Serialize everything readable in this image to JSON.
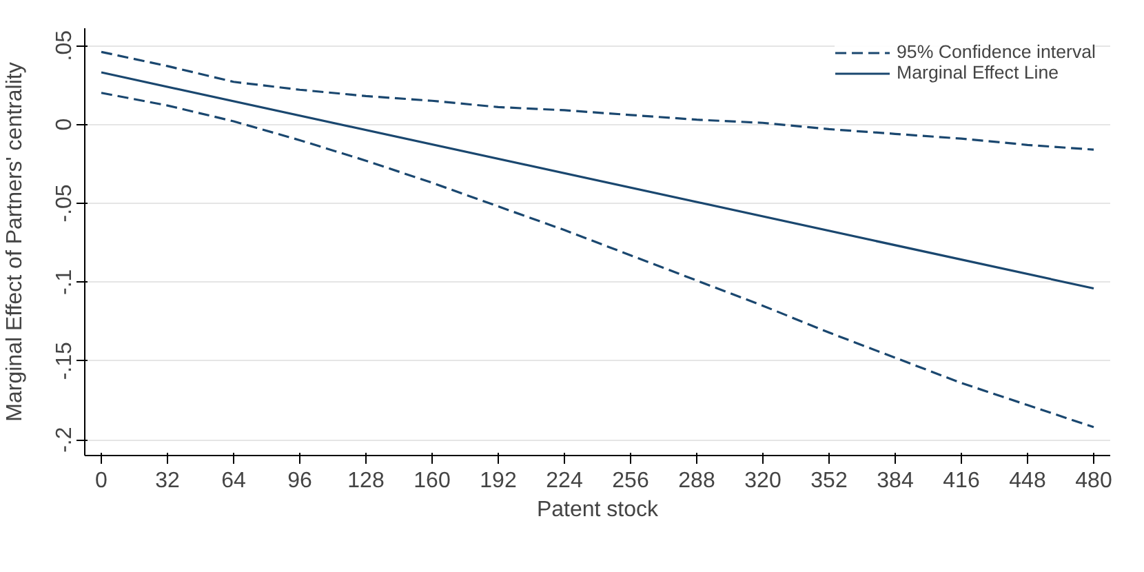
{
  "chart_data": {
    "type": "line",
    "xlabel": "Patent stock",
    "ylabel": "Marginal Effect of Partners' centrality",
    "x": [
      0,
      32,
      64,
      96,
      128,
      160,
      192,
      224,
      256,
      288,
      320,
      352,
      384,
      416,
      448,
      480
    ],
    "series": [
      {
        "name": "95% Confidence interval",
        "color": "#1a476f",
        "line_style": "dashed",
        "values": [
          0.046,
          0.037,
          0.027,
          0.022,
          0.018,
          0.015,
          0.011,
          0.009,
          0.006,
          0.003,
          0.001,
          -0.003,
          -0.006,
          -0.009,
          -0.013,
          -0.016
        ]
      },
      {
        "color": "#1a476f",
        "line_style": "dashed",
        "values": [
          0.02,
          0.012,
          0.002,
          -0.01,
          -0.023,
          -0.037,
          -0.052,
          -0.067,
          -0.083,
          -0.099,
          -0.115,
          -0.132,
          -0.148,
          -0.164,
          -0.178,
          -0.192
        ]
      },
      {
        "name": "Marginal Effect Line",
        "color": "#1a476f",
        "line_style": "solid",
        "x": [
          0,
          480
        ],
        "values": [
          0.033,
          -0.104
        ]
      }
    ],
    "xlim": [
      -8,
      488
    ],
    "xticks": [
      0,
      32,
      64,
      96,
      128,
      160,
      192,
      224,
      256,
      288,
      320,
      352,
      384,
      416,
      448,
      480
    ],
    "ylim": [
      -0.21,
      0.061
    ],
    "yticks": [
      {
        "value": 0.05,
        "label": ".05"
      },
      0,
      {
        "value": -0.05,
        "label": "-.05"
      },
      {
        "value": -0.1,
        "label": "-.1"
      },
      {
        "value": -0.15,
        "label": "-.15"
      },
      {
        "value": -0.2,
        "label": "-.2"
      }
    ],
    "grid": "y",
    "legend": "top right"
  }
}
